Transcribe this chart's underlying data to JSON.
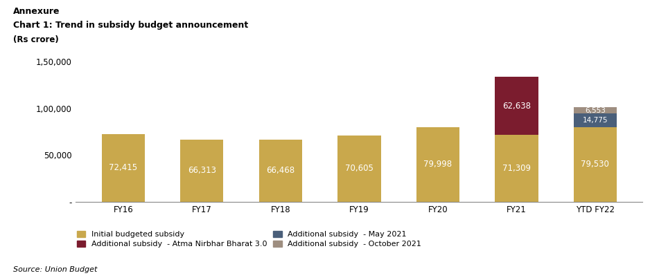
{
  "categories": [
    "FY16",
    "FY17",
    "FY18",
    "FY19",
    "FY20",
    "FY21",
    "YTD FY22"
  ],
  "initial_budgeted": [
    72415,
    66313,
    66468,
    70605,
    79998,
    71309,
    79530
  ],
  "additional_atma_nirbhar": [
    0,
    0,
    0,
    0,
    0,
    62638,
    0
  ],
  "additional_may2021": [
    0,
    0,
    0,
    0,
    0,
    0,
    14775
  ],
  "additional_oct2021": [
    0,
    0,
    0,
    0,
    0,
    0,
    6553
  ],
  "color_initial": "#C9A84C",
  "color_atma_nirbhar": "#7B1C2E",
  "color_may2021": "#4A5F7A",
  "color_oct2021": "#9E8E80",
  "title_annexure": "Annexure",
  "title_chart": "Chart 1: Trend in subsidy budget announcement",
  "title_unit": "(Rs crore)",
  "ylim": [
    0,
    150000
  ],
  "yticks": [
    0,
    50000,
    100000,
    150000
  ],
  "ytick_labels": [
    "-",
    "50,000",
    "1,00,000",
    "1,50,000"
  ],
  "legend_labels": [
    "Initial budgeted subsidy",
    "Additional subsidy  - Atma Nirbhar Bharat 3.0",
    "Additional subsidy  - May 2021",
    "Additional subsidy  - October 2021"
  ],
  "source_text": "Source: Union Budget",
  "label_fontsize": 8.5,
  "bar_width": 0.55
}
